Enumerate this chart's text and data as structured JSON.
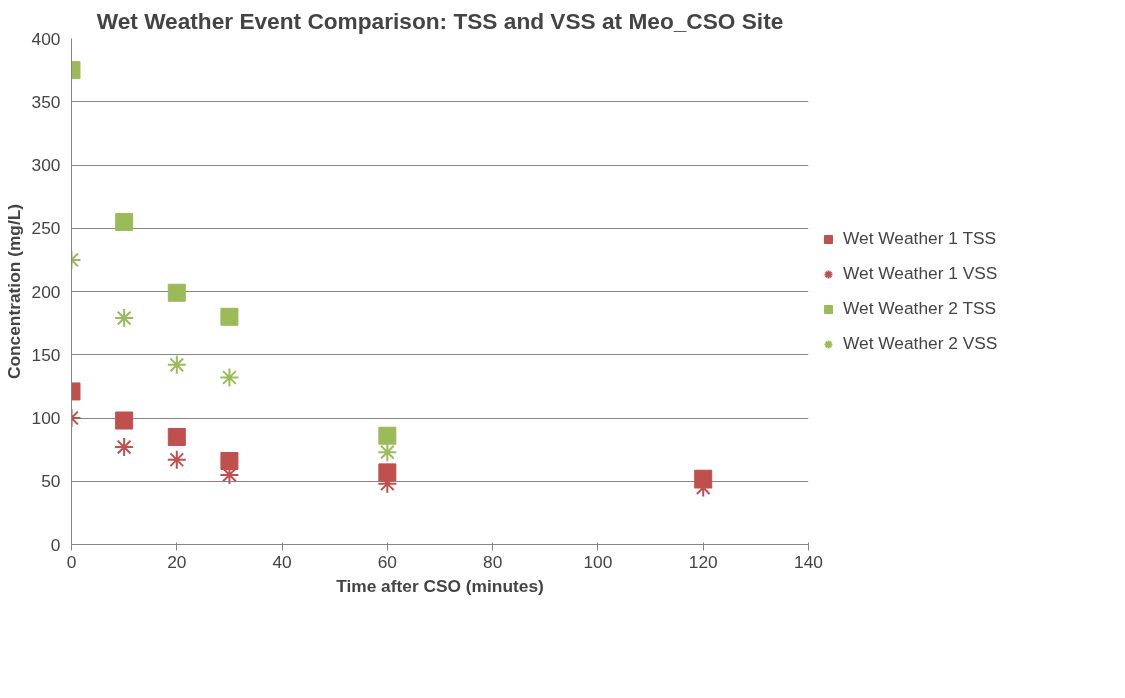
{
  "chart_data": {
    "type": "scatter",
    "title": "Wet Weather Event Comparison: TSS and VSS at Meo_CSO Site",
    "xlabel": "Time after CSO (minutes)",
    "ylabel": "Concentration (mg/L)",
    "x": [
      0,
      10,
      20,
      30,
      60,
      120
    ],
    "series": [
      {
        "name": "Wet Weather 1 TSS",
        "color": "#c0504d",
        "marker": "square",
        "values": [
          121,
          98,
          85,
          66,
          57,
          52
        ]
      },
      {
        "name": "Wet Weather 1 VSS",
        "color": "#c0504d",
        "marker": "cross",
        "values": [
          100,
          77,
          67,
          55,
          48,
          45
        ]
      },
      {
        "name": "Wet Weather 2 TSS",
        "color": "#9bbb59",
        "marker": "square",
        "values": [
          375,
          255,
          199,
          180,
          86,
          null
        ]
      },
      {
        "name": "Wet Weather 2 VSS",
        "color": "#9bbb59",
        "marker": "cross",
        "values": [
          225,
          179,
          142,
          132,
          73,
          null
        ]
      }
    ],
    "xlim": [
      0,
      140
    ],
    "xticks": [
      0,
      20,
      40,
      60,
      80,
      100,
      120,
      140
    ],
    "ylim": [
      0,
      400
    ],
    "yticks": [
      0,
      50,
      100,
      150,
      200,
      250,
      300,
      350,
      400
    ],
    "grid": "y",
    "legend": "right"
  }
}
